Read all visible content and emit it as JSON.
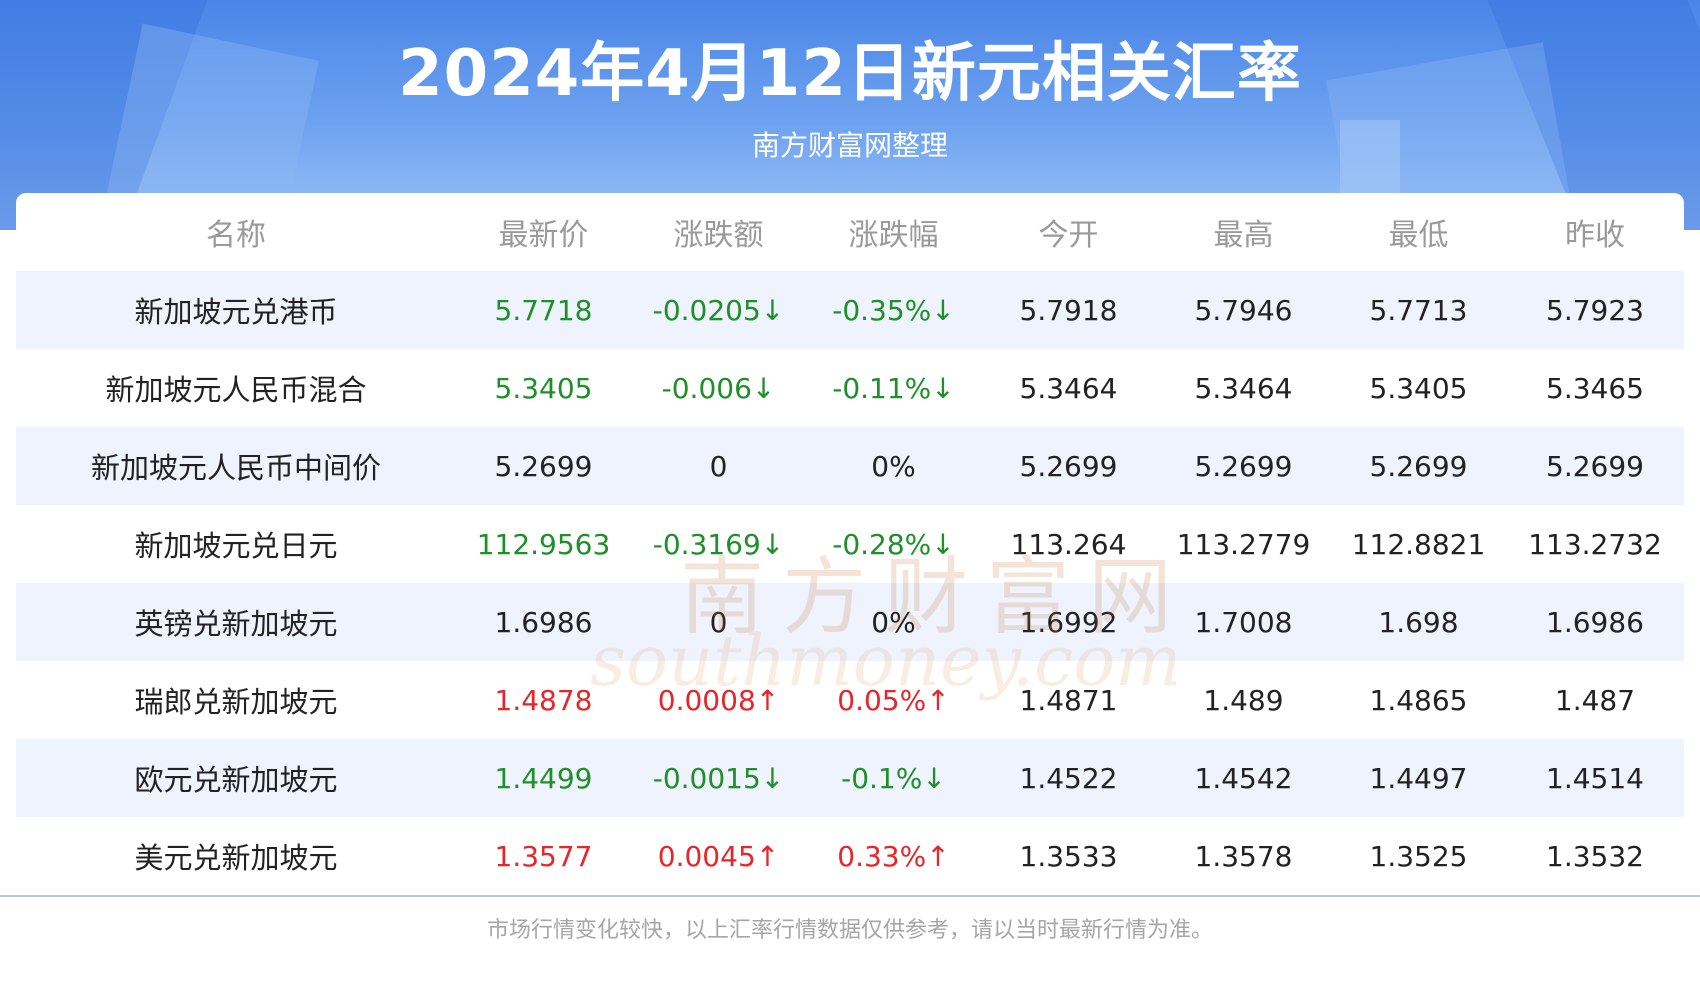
{
  "header": {
    "title": "2024年4月12日新元相关汇率",
    "subtitle": "南方财富网整理"
  },
  "table": {
    "columns": [
      "名称",
      "最新价",
      "涨跌额",
      "涨跌幅",
      "今开",
      "最高",
      "最低",
      "昨收"
    ],
    "rows": [
      {
        "name": "新加坡元兑港币",
        "latest": "5.7718",
        "change": "-0.0205↓",
        "pct": "-0.35%↓",
        "open": "5.7918",
        "high": "5.7946",
        "low": "5.7713",
        "prev": "5.7923",
        "trend": "down"
      },
      {
        "name": "新加坡元人民币混合",
        "latest": "5.3405",
        "change": "-0.006↓",
        "pct": "-0.11%↓",
        "open": "5.3464",
        "high": "5.3464",
        "low": "5.3405",
        "prev": "5.3465",
        "trend": "down"
      },
      {
        "name": "新加坡元人民币中间价",
        "latest": "5.2699",
        "change": "0",
        "pct": "0%",
        "open": "5.2699",
        "high": "5.2699",
        "low": "5.2699",
        "prev": "5.2699",
        "trend": "flat"
      },
      {
        "name": "新加坡元兑日元",
        "latest": "112.9563",
        "change": "-0.3169↓",
        "pct": "-0.28%↓",
        "open": "113.264",
        "high": "113.2779",
        "low": "112.8821",
        "prev": "113.2732",
        "trend": "down"
      },
      {
        "name": "英镑兑新加坡元",
        "latest": "1.6986",
        "change": "0",
        "pct": "0%",
        "open": "1.6992",
        "high": "1.7008",
        "low": "1.698",
        "prev": "1.6986",
        "trend": "flat"
      },
      {
        "name": "瑞郎兑新加坡元",
        "latest": "1.4878",
        "change": "0.0008↑",
        "pct": "0.05%↑",
        "open": "1.4871",
        "high": "1.489",
        "low": "1.4865",
        "prev": "1.487",
        "trend": "up"
      },
      {
        "name": "欧元兑新加坡元",
        "latest": "1.4499",
        "change": "-0.0015↓",
        "pct": "-0.1%↓",
        "open": "1.4522",
        "high": "1.4542",
        "low": "1.4497",
        "prev": "1.4514",
        "trend": "down"
      },
      {
        "name": "美元兑新加坡元",
        "latest": "1.3577",
        "change": "0.0045↑",
        "pct": "0.33%↑",
        "open": "1.3533",
        "high": "1.3578",
        "low": "1.3525",
        "prev": "1.3532",
        "trend": "up"
      }
    ]
  },
  "watermark": {
    "cn": "南方财富网",
    "en": "southmoney.com"
  },
  "footer": {
    "note": "市场行情变化较快，以上汇率行情数据仅供参考，请以当时最新行情为准。"
  },
  "colors": {
    "up": "#e5262a",
    "down": "#1f8f2a",
    "header": "#4a86e8",
    "stripe": "#eef3fd"
  }
}
